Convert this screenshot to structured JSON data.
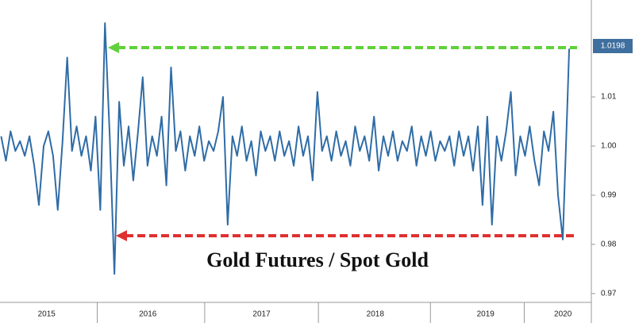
{
  "chart_data": {
    "type": "line",
    "title": "Gold Futures / Spot Gold",
    "end_label": "1.0198",
    "x": [
      2015.21,
      2015.252,
      2015.293,
      2015.335,
      2015.376,
      2015.418,
      2015.459,
      2015.501,
      2015.542,
      2015.584,
      2015.625,
      2015.667,
      2015.708,
      2015.75,
      2015.791,
      2015.833,
      2015.874,
      2015.916,
      2015.957,
      2015.999,
      2016.04,
      2016.082,
      2016.123,
      2016.165,
      2016.206,
      2016.248,
      2016.289,
      2016.331,
      2016.372,
      2016.414,
      2016.455,
      2016.497,
      2016.538,
      2016.58,
      2016.621,
      2016.663,
      2016.704,
      2016.746,
      2016.787,
      2016.829,
      2016.87,
      2016.912,
      2016.953,
      2016.995,
      2017.036,
      2017.078,
      2017.119,
      2017.161,
      2017.202,
      2017.244,
      2017.285,
      2017.327,
      2017.368,
      2017.41,
      2017.451,
      2017.493,
      2017.534,
      2017.576,
      2017.617,
      2017.659,
      2017.7,
      2017.742,
      2017.783,
      2017.825,
      2017.866,
      2017.908,
      2017.949,
      2017.991,
      2018.032,
      2018.074,
      2018.115,
      2018.157,
      2018.198,
      2018.24,
      2018.281,
      2018.323,
      2018.364,
      2018.406,
      2018.447,
      2018.489,
      2018.53,
      2018.572,
      2018.613,
      2018.655,
      2018.696,
      2018.738,
      2018.779,
      2018.821,
      2018.862,
      2018.904,
      2018.945,
      2018.987,
      2019.028,
      2019.07,
      2019.111,
      2019.153,
      2019.194,
      2019.236,
      2019.277,
      2019.319,
      2019.36,
      2019.402,
      2019.443,
      2019.485,
      2019.526,
      2019.568,
      2019.609,
      2019.651,
      2019.692,
      2019.734,
      2019.775,
      2019.817,
      2019.858,
      2019.9,
      2019.941,
      2019.983,
      2020.024,
      2020.066,
      2020.107,
      2020.149,
      2020.19,
      2020.205
    ],
    "series": [
      {
        "color": "#2f6ca6",
        "values": [
          1.002,
          0.997,
          1.003,
          0.999,
          1.001,
          0.998,
          1.002,
          0.996,
          0.988,
          1.0,
          1.003,
          0.998,
          0.987,
          1.001,
          1.018,
          0.999,
          1.004,
          0.998,
          1.002,
          0.995,
          1.006,
          0.987,
          1.025,
          1.002,
          0.974,
          1.009,
          0.996,
          1.004,
          0.993,
          1.003,
          1.014,
          0.996,
          1.002,
          0.998,
          1.006,
          0.992,
          1.016,
          0.999,
          1.003,
          0.995,
          1.002,
          0.998,
          1.004,
          0.997,
          1.001,
          0.999,
          1.003,
          1.01,
          0.984,
          1.002,
          0.998,
          1.004,
          0.997,
          1.001,
          0.994,
          1.003,
          0.999,
          1.002,
          0.997,
          1.003,
          0.998,
          1.001,
          0.996,
          1.004,
          0.998,
          1.002,
          0.993,
          1.011,
          0.999,
          1.002,
          0.997,
          1.003,
          0.998,
          1.001,
          0.996,
          1.004,
          0.999,
          1.002,
          0.997,
          1.006,
          0.995,
          1.002,
          0.998,
          1.003,
          0.997,
          1.001,
          0.999,
          1.004,
          0.996,
          1.002,
          0.998,
          1.003,
          0.997,
          1.001,
          0.999,
          1.002,
          0.996,
          1.003,
          0.998,
          1.002,
          0.995,
          1.004,
          0.988,
          1.006,
          0.984,
          1.002,
          0.997,
          1.003,
          1.011,
          0.994,
          1.002,
          0.998,
          1.004,
          0.997,
          0.992,
          1.003,
          0.999,
          1.007,
          0.99,
          0.981,
          1.009,
          1.0198
        ]
      }
    ],
    "xlim": [
      2015.2,
      2020.4
    ],
    "xticks": [
      {
        "value": 2015.61,
        "label": "2015"
      },
      {
        "value": 2016.5,
        "label": "2016"
      },
      {
        "value": 2017.5,
        "label": "2017"
      },
      {
        "value": 2018.5,
        "label": "2018"
      },
      {
        "value": 2019.47,
        "label": "2019"
      },
      {
        "value": 2020.15,
        "label": "2020"
      }
    ],
    "ylim": [
      0.9682,
      1.0289
    ],
    "yticks": [
      1.01,
      {
        "value": 1,
        "label": "1.00"
      },
      0.99,
      0.98,
      0.97
    ],
    "grid": false
  }
}
